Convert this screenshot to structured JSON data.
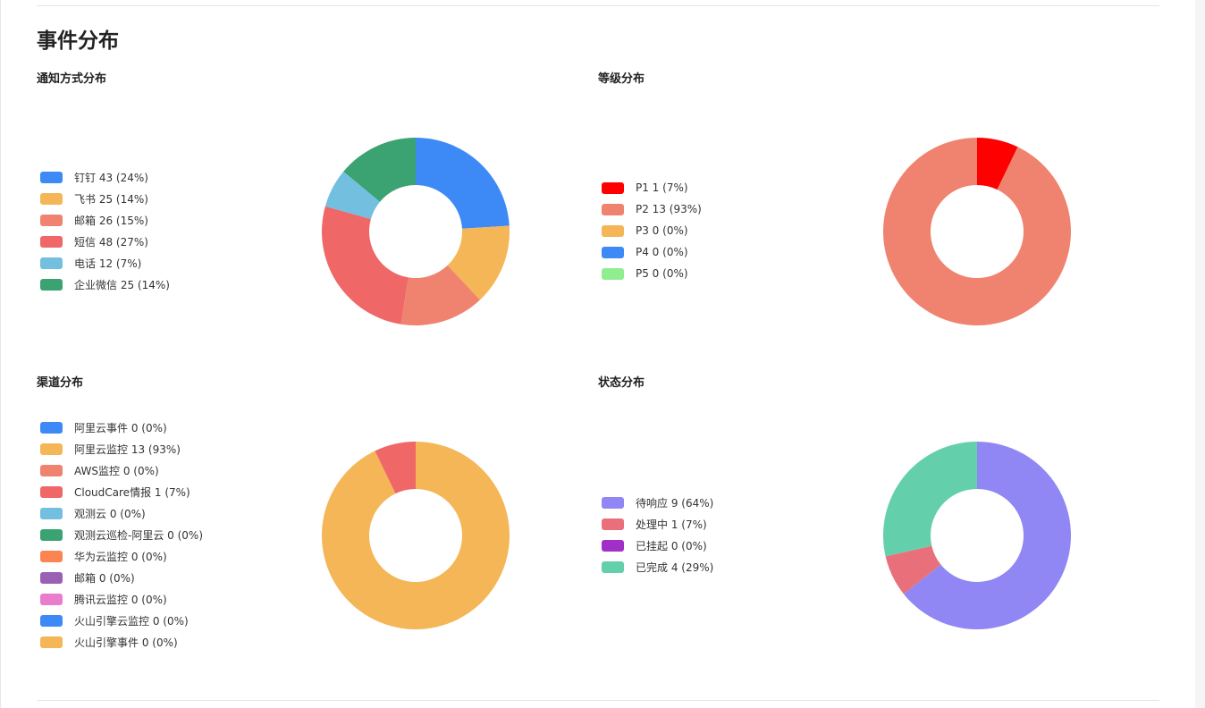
{
  "page": {
    "title": "事件分布"
  },
  "chart_data": [
    {
      "id": "notify",
      "type": "pie",
      "title": "通知方式分布",
      "legend_position": "left",
      "series": [
        {
          "name": "钉钉",
          "value": 43,
          "label": "钉钉 43 (24%)",
          "color": "#3d8af7"
        },
        {
          "name": "飞书",
          "value": 25,
          "label": "飞书 25 (14%)",
          "color": "#f4b657"
        },
        {
          "name": "邮箱",
          "value": 26,
          "label": "邮箱 26 (15%)",
          "color": "#f0836f"
        },
        {
          "name": "短信",
          "value": 48,
          "label": "短信 48 (27%)",
          "color": "#f06767"
        },
        {
          "name": "电话",
          "value": 12,
          "label": "电话 12 (7%)",
          "color": "#72bfe0"
        },
        {
          "name": "企业微信",
          "value": 25,
          "label": "企业微信 25 (14%)",
          "color": "#3ba272"
        }
      ]
    },
    {
      "id": "level",
      "type": "pie",
      "title": "等级分布",
      "legend_position": "left",
      "series": [
        {
          "name": "P1",
          "value": 1,
          "label": "P1 1 (7%)",
          "color": "#ff0000"
        },
        {
          "name": "P2",
          "value": 13,
          "label": "P2 13 (93%)",
          "color": "#f0836f"
        },
        {
          "name": "P3",
          "value": 0,
          "label": "P3 0 (0%)",
          "color": "#f4b657"
        },
        {
          "name": "P4",
          "value": 0,
          "label": "P4 0 (0%)",
          "color": "#3d8af7"
        },
        {
          "name": "P5",
          "value": 0,
          "label": "P5 0 (0%)",
          "color": "#90ee90"
        }
      ]
    },
    {
      "id": "channel",
      "type": "pie",
      "title": "渠道分布",
      "legend_position": "left",
      "series": [
        {
          "name": "阿里云事件",
          "value": 0,
          "label": "阿里云事件 0 (0%)",
          "color": "#3d8af7"
        },
        {
          "name": "阿里云监控",
          "value": 13,
          "label": "阿里云监控 13 (93%)",
          "color": "#f4b657"
        },
        {
          "name": "AWS监控",
          "value": 0,
          "label": "AWS监控 0 (0%)",
          "color": "#f0836f"
        },
        {
          "name": "CloudCare情报",
          "value": 1,
          "label": "CloudCare情报 1 (7%)",
          "color": "#f06767"
        },
        {
          "name": "观测云",
          "value": 0,
          "label": "观测云 0 (0%)",
          "color": "#72bfe0"
        },
        {
          "name": "观测云巡检-阿里云",
          "value": 0,
          "label": "观测云巡检-阿里云 0 (0%)",
          "color": "#3ba272"
        },
        {
          "name": "华为云监控",
          "value": 0,
          "label": "华为云监控 0 (0%)",
          "color": "#fc8452"
        },
        {
          "name": "邮箱",
          "value": 0,
          "label": "邮箱 0 (0%)",
          "color": "#9a60b4"
        },
        {
          "name": "腾讯云监控",
          "value": 0,
          "label": "腾讯云监控 0 (0%)",
          "color": "#ea7ccc"
        },
        {
          "name": "火山引擎云监控",
          "value": 0,
          "label": "火山引擎云监控 0 (0%)",
          "color": "#3d8af7"
        },
        {
          "name": "火山引擎事件",
          "value": 0,
          "label": "火山引擎事件 0 (0%)",
          "color": "#f4b657"
        }
      ]
    },
    {
      "id": "status",
      "type": "pie",
      "title": "状态分布",
      "legend_position": "left",
      "series": [
        {
          "name": "待响应",
          "value": 9,
          "label": "待响应 9 (64%)",
          "color": "#9087f4"
        },
        {
          "name": "处理中",
          "value": 1,
          "label": "处理中 1 (7%)",
          "color": "#e9707b"
        },
        {
          "name": "已挂起",
          "value": 0,
          "label": "已挂起 0 (0%)",
          "color": "#a030c8"
        },
        {
          "name": "已完成",
          "value": 4,
          "label": "已完成 4 (29%)",
          "color": "#64d0ab"
        }
      ]
    }
  ]
}
